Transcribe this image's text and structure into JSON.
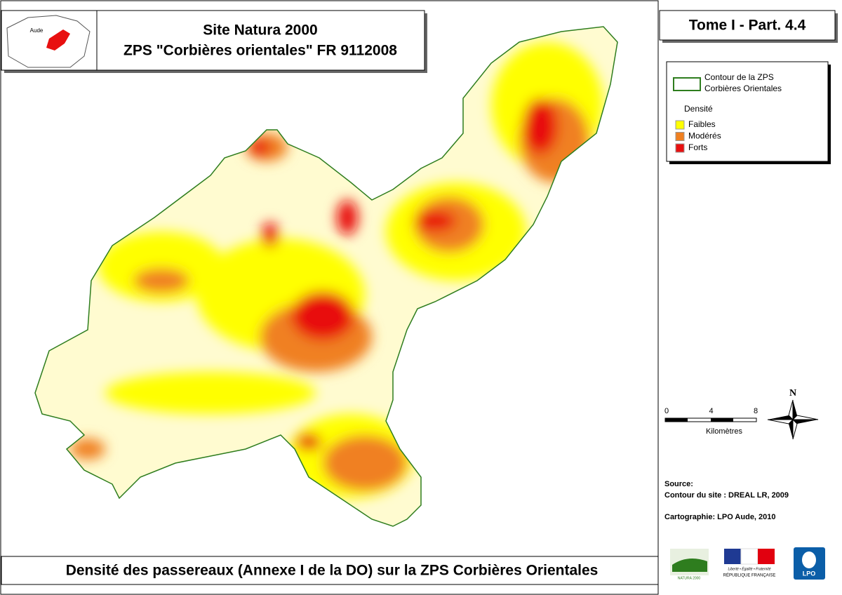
{
  "header": {
    "title": "Site Natura 2000",
    "subtitle": "ZPS \"Corbières orientales\" FR 9112008",
    "inset_label": "Aude"
  },
  "tome": "Tome I - Part. 4.4",
  "legend": {
    "contour_lines": [
      "Contour de la ZPS",
      "Corbières Orientales"
    ],
    "density_title": "Densité",
    "outline_color": "#2e7d1e",
    "classes": [
      {
        "label": "Faibles",
        "color": "#ffff00"
      },
      {
        "label": "Modérés",
        "color": "#f08020"
      },
      {
        "label": "Forts",
        "color": "#e81010"
      }
    ]
  },
  "scale": {
    "ticks": [
      0,
      4,
      8
    ],
    "unit": "Kilomètres"
  },
  "north": "N",
  "source": {
    "heading": "Source:",
    "contour": "Contour du site : DREAL LR, 2009",
    "cartography": "Cartographie: LPO Aude, 2010"
  },
  "logos": {
    "natura": "NATURA 2000",
    "republic_motto": "Liberté • Égalité • Fraternité",
    "republic": "RÉPUBLIQUE FRANÇAISE",
    "lpo": "LPO"
  },
  "footer": "Densité des passereaux (Annexe I de la DO) sur la ZPS Corbières Orientales"
}
